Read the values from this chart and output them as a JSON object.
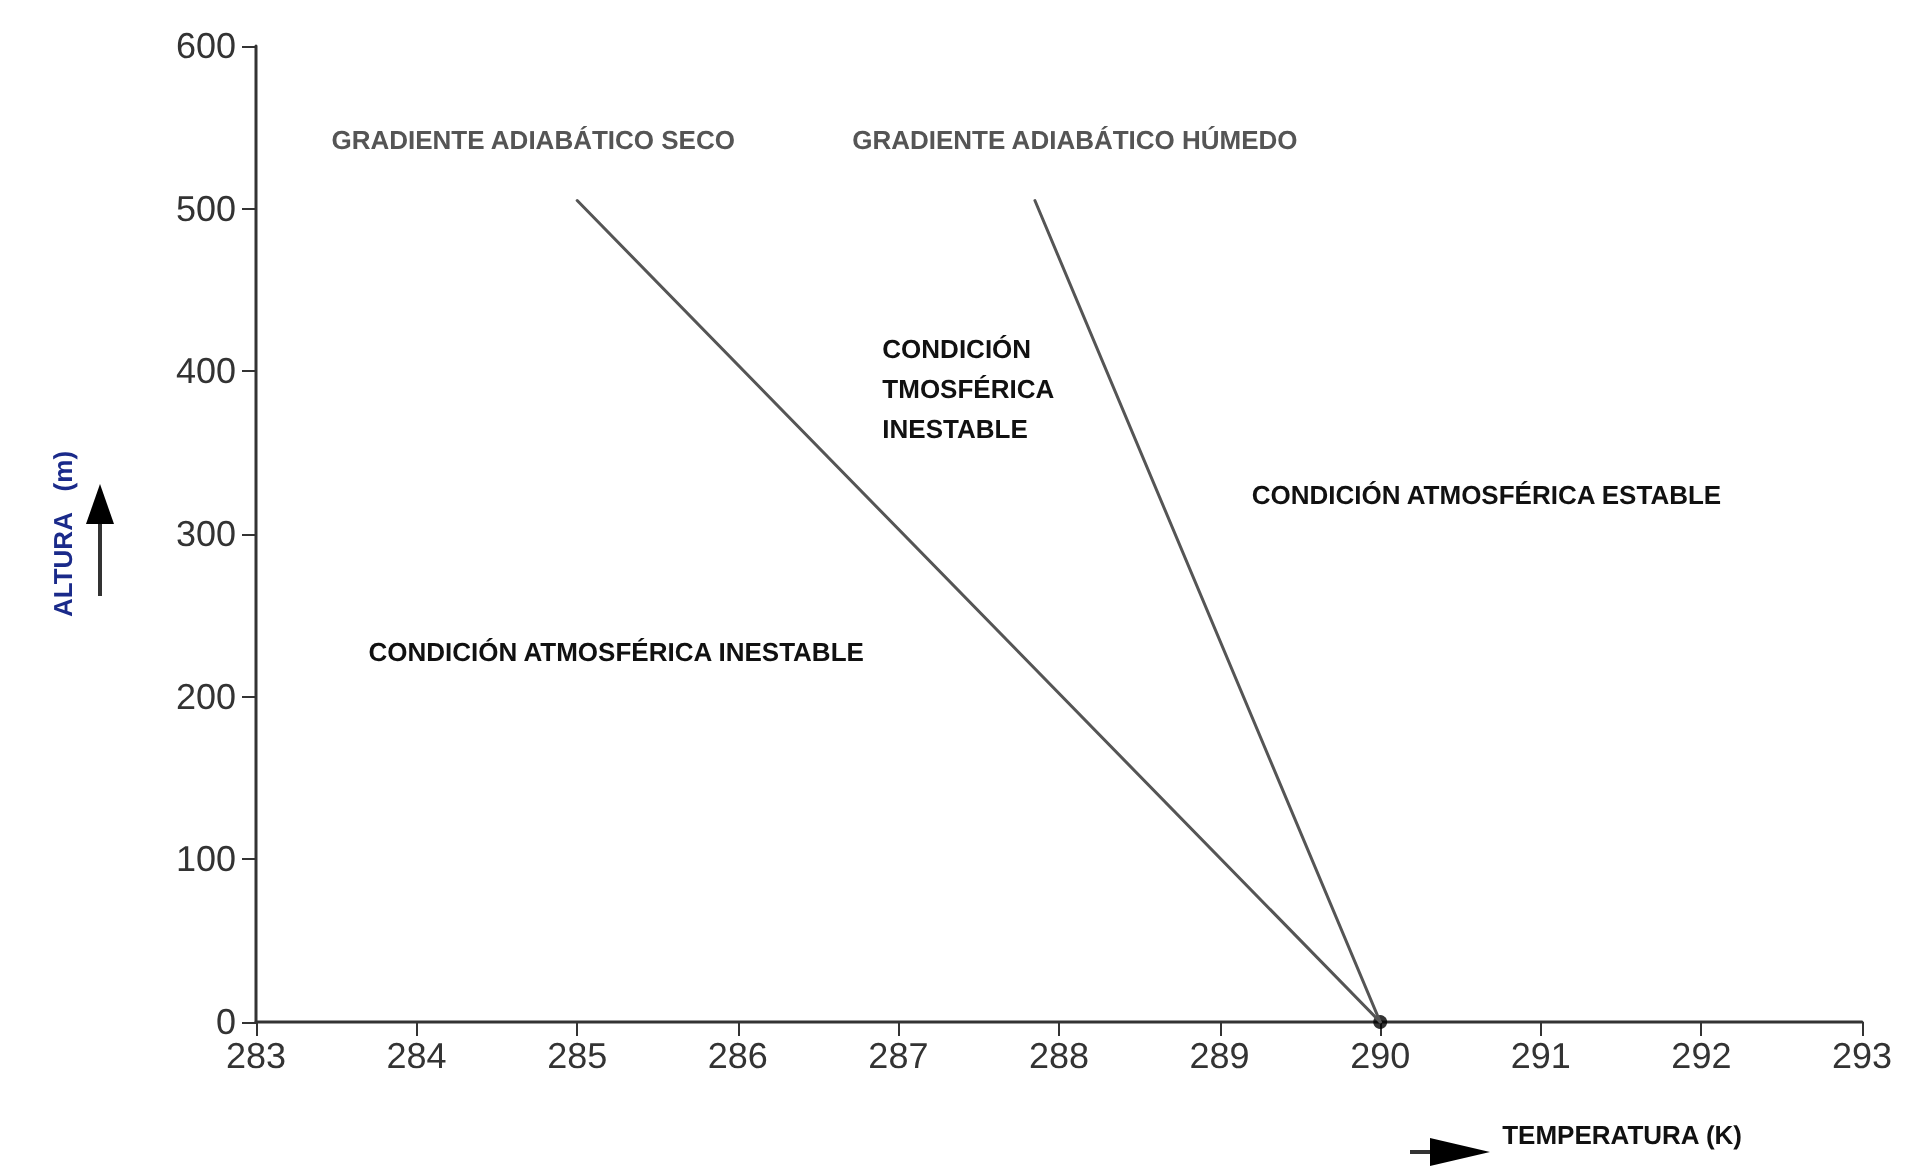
{
  "chart_data": {
    "type": "line",
    "xlabel": "TEMPERATURA (K)",
    "ylabel": "ALTURA   (m)",
    "series": [
      {
        "name": "GRADIENTE ADIABÁTICO SECO",
        "color": "#555555",
        "x": [
          285,
          290
        ],
        "values": [
          505,
          0
        ]
      },
      {
        "name": "GRADIENTE ADIABÁTICO HÚMEDO",
        "color": "#555555",
        "x": [
          287.85,
          290
        ],
        "values": [
          505,
          0
        ]
      },
      {
        "type": "scatter",
        "color": "#000000",
        "x": [
          290
        ],
        "values": [
          0
        ],
        "marker": "circle"
      }
    ],
    "annotations": [
      "CONDICIÓN ATMOSFÉRICA INESTABLE",
      "CONDICIÓN\nTMOSFÉRICA\nINESTABLE",
      "CONDICIÓN ATMOSFÉRICA ESTABLE"
    ],
    "xlim": [
      283,
      293
    ],
    "xticks": [
      283,
      284,
      285,
      286,
      287,
      288,
      289,
      290,
      291,
      292,
      293
    ],
    "ylim": [
      0,
      600
    ],
    "yticks": [
      0,
      100,
      200,
      300,
      400,
      500,
      600
    ],
    "grid": false,
    "legend": false,
    "line_style": "solid"
  }
}
